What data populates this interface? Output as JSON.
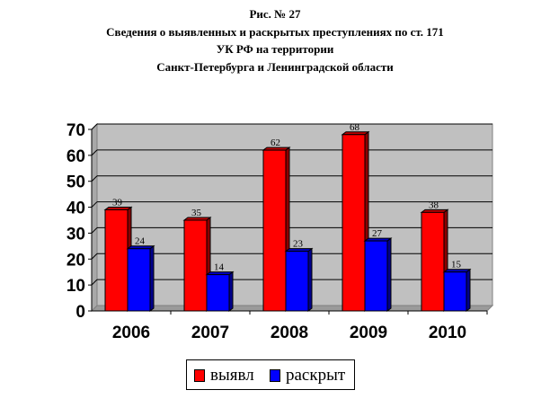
{
  "title_lines": [
    "Рис. № 27",
    "Сведения о выявленных и раскрытых преступлениях по ст. 171",
    "УК РФ на территории",
    "Санкт-Петербурга и Ленинградской области"
  ],
  "colors": {
    "plot_background": "#C0C0C0",
    "series_1": "#FF0000",
    "series_2": "#0000FF"
  },
  "chart_data": {
    "type": "bar",
    "title": "Рис. № 27 Сведения о выявленных и раскрытых преступлениях по ст. 171 УК РФ на территории Санкт-Петербурга и Ленинградской области",
    "categories": [
      "2006",
      "2007",
      "2008",
      "2009",
      "2010"
    ],
    "series": [
      {
        "name": "выявл",
        "values": [
          39,
          35,
          62,
          68,
          38
        ],
        "color": "#FF0000"
      },
      {
        "name": "раскрыт",
        "values": [
          24,
          14,
          23,
          27,
          15
        ],
        "color": "#0000FF"
      }
    ],
    "ylim": [
      0,
      70
    ],
    "yticks": [
      "0",
      "10",
      "20",
      "30",
      "40",
      "50",
      "60",
      "70"
    ],
    "grid": true,
    "legend": "bottom",
    "bar_style": "3d"
  }
}
